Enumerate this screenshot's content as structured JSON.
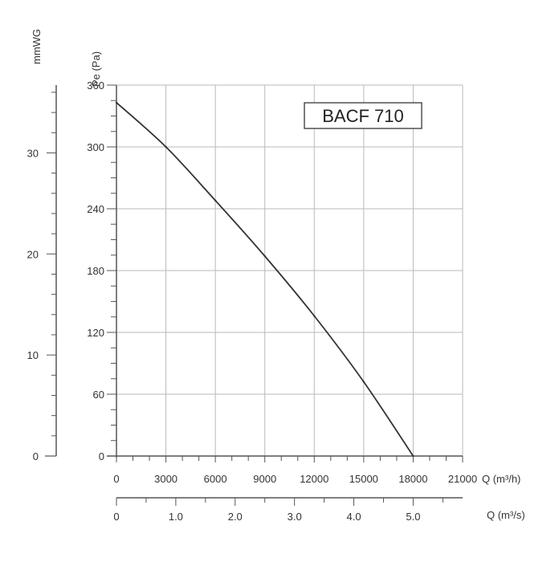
{
  "chart_data": {
    "type": "line",
    "title": "BACF 710",
    "x": [
      0,
      3000,
      6000,
      9000,
      12000,
      15000,
      18000
    ],
    "series": [
      {
        "values": [
          343,
          300,
          248,
          194,
          136,
          72,
          0
        ]
      }
    ],
    "xlabel": "Q (m³/h)",
    "xlim": [
      0,
      21000
    ],
    "xticks": [
      "0",
      "3000",
      "6000",
      "9000",
      "12000",
      "15000",
      "18000",
      "21000"
    ],
    "ylabel": "Pe (Pa)",
    "ylim": [
      0,
      360
    ],
    "yticks": [
      "0",
      "60",
      "120",
      "180",
      "240",
      "300",
      "360"
    ],
    "secondary_x_label": "Q (m³/s)",
    "secondary_x_ticks": [
      "0",
      "1.0",
      "2.0",
      "3.0",
      "4.0",
      "5.0"
    ],
    "secondary_x_values": [
      0,
      1.0,
      2.0,
      3.0,
      4.0,
      5.0
    ],
    "secondary_y_label": "mmWG",
    "secondary_y_ticks": [
      "0",
      "10",
      "20",
      "30"
    ],
    "secondary_y_values": [
      0,
      10,
      20,
      30
    ],
    "grid": true,
    "colors": {
      "line": "#333333",
      "grid": "#b9b9b9",
      "axis": "#555555"
    }
  }
}
